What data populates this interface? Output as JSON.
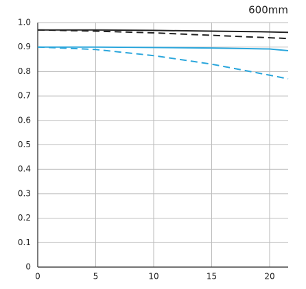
{
  "chart_data": {
    "type": "line",
    "title": "600mm",
    "x": [
      0,
      5,
      10,
      15,
      20,
      21.6
    ],
    "xlim": [
      0,
      21.6
    ],
    "xticks": [
      0,
      5,
      10,
      15,
      20
    ],
    "ylim": [
      0,
      1
    ],
    "yticks": [
      0,
      0.1,
      0.2,
      0.3,
      0.4,
      0.5,
      0.6,
      0.7,
      0.8,
      0.9,
      {
        "value": 1,
        "label": "1.0"
      }
    ],
    "grid": true,
    "series": [
      {
        "color": "#222222",
        "dashed": false,
        "values": [
          0.97,
          0.97,
          0.968,
          0.965,
          0.962,
          0.96
        ]
      },
      {
        "color": "#222222",
        "dashed": true,
        "values": [
          0.97,
          0.965,
          0.958,
          0.948,
          0.938,
          0.935
        ]
      },
      {
        "color": "#2aa6dc",
        "dashed": false,
        "values": [
          0.9,
          0.9,
          0.898,
          0.896,
          0.892,
          0.885
        ]
      },
      {
        "color": "#2aa6dc",
        "dashed": true,
        "values": [
          0.9,
          0.89,
          0.865,
          0.83,
          0.785,
          0.77
        ]
      }
    ]
  }
}
